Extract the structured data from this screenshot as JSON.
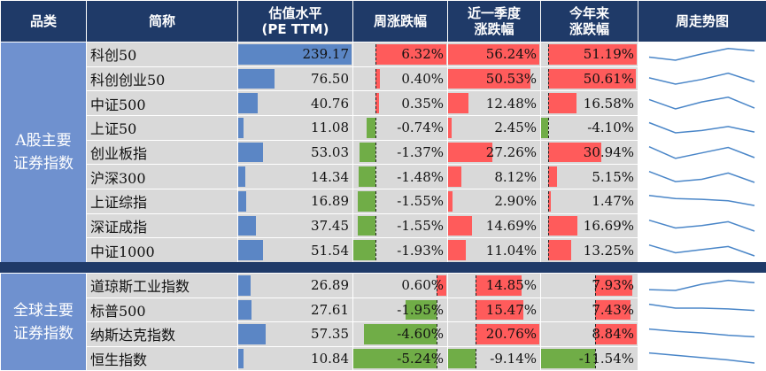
{
  "header": {
    "col_category": "品类",
    "col_name": "简称",
    "col_pe": [
      "估值水平",
      "(PE TTM)"
    ],
    "col_week": "周涨跌幅",
    "col_quarter": [
      "近一季度",
      "涨跌幅"
    ],
    "col_ytd": [
      "今年来",
      "涨跌幅"
    ],
    "col_trend": "周走势图"
  },
  "groups": [
    {
      "label": [
        "A股主要",
        "证券指数"
      ],
      "rows": [
        {
          "name": "科创50",
          "pe": 239.17,
          "pe_text": "239.17",
          "week": 6.32,
          "week_text": "6.32%",
          "quarter": 56.24,
          "quarter_text": "56.24%",
          "ytd": 51.19,
          "ytd_text": "51.19%",
          "trend": [
            0.35,
            0.15,
            0.55,
            0.9,
            0.75
          ]
        },
        {
          "name": "科创创业50",
          "pe": 76.5,
          "pe_text": "76.50",
          "week": 0.4,
          "week_text": "0.40%",
          "quarter": 50.53,
          "quarter_text": "50.53%",
          "ytd": 50.61,
          "ytd_text": "50.61%",
          "trend": [
            0.55,
            0.15,
            0.45,
            0.85,
            0.3
          ]
        },
        {
          "name": "中证500",
          "pe": 40.76,
          "pe_text": "40.76",
          "week": 0.35,
          "week_text": "0.35%",
          "quarter": 12.48,
          "quarter_text": "12.48%",
          "ytd": 16.58,
          "ytd_text": "16.58%",
          "trend": [
            0.75,
            0.15,
            0.6,
            0.9,
            0.2
          ]
        },
        {
          "name": "上证50",
          "pe": 11.08,
          "pe_text": "11.08",
          "week": -0.74,
          "week_text": "-0.74%",
          "quarter": 2.45,
          "quarter_text": "2.45%",
          "ytd": -4.1,
          "ytd_text": "-4.10%",
          "trend": [
            0.8,
            0.15,
            0.3,
            0.55,
            0.2
          ]
        },
        {
          "name": "创业板指",
          "pe": 53.03,
          "pe_text": "53.03",
          "week": -1.37,
          "week_text": "-1.37%",
          "quarter": 27.26,
          "quarter_text": "27.26%",
          "ytd": 30.94,
          "ytd_text": "30.94%",
          "trend": [
            0.85,
            0.1,
            0.45,
            0.8,
            0.15
          ]
        },
        {
          "name": "沪深300",
          "pe": 14.34,
          "pe_text": "14.34",
          "week": -1.48,
          "week_text": "-1.48%",
          "quarter": 8.12,
          "quarter_text": "8.12%",
          "ytd": 5.15,
          "ytd_text": "5.15%",
          "trend": [
            0.85,
            0.2,
            0.35,
            0.75,
            0.15
          ]
        },
        {
          "name": "上证综指",
          "pe": 16.89,
          "pe_text": "16.89",
          "week": -1.55,
          "week_text": "-1.55%",
          "quarter": 2.9,
          "quarter_text": "2.90%",
          "ytd": 1.47,
          "ytd_text": "1.47%",
          "trend": [
            0.85,
            0.65,
            0.6,
            0.5,
            0.2
          ]
        },
        {
          "name": "深证成指",
          "pe": 37.45,
          "pe_text": "37.45",
          "week": -1.55,
          "week_text": "-1.55%",
          "quarter": 14.69,
          "quarter_text": "14.69%",
          "ytd": 16.69,
          "ytd_text": "16.69%",
          "trend": [
            0.85,
            0.35,
            0.5,
            0.75,
            0.15
          ]
        },
        {
          "name": "中证1000",
          "pe": 51.54,
          "pe_text": "51.54",
          "week": -1.93,
          "week_text": "-1.93%",
          "quarter": 11.04,
          "quarter_text": "11.04%",
          "ytd": 13.25,
          "ytd_text": "13.25%",
          "trend": [
            0.85,
            0.35,
            0.55,
            0.75,
            0.15
          ]
        }
      ]
    },
    {
      "label": [
        "全球主要",
        "证券指数"
      ],
      "rows": [
        {
          "name": "道琼斯工业指数",
          "pe": 26.89,
          "pe_text": "26.89",
          "week": 0.6,
          "week_text": "0.60%",
          "quarter": 14.85,
          "quarter_text": "14.85%",
          "ytd": 7.93,
          "ytd_text": "7.93%",
          "trend": [
            0.25,
            0.2,
            0.6,
            0.85,
            0.7
          ]
        },
        {
          "name": "标普500",
          "pe": 27.61,
          "pe_text": "27.61",
          "week": -1.95,
          "week_text": "-1.95%",
          "quarter": 15.47,
          "quarter_text": "15.47%",
          "ytd": 7.43,
          "ytd_text": "7.43%",
          "trend": [
            0.85,
            0.6,
            0.6,
            0.55,
            0.45
          ]
        },
        {
          "name": "纳斯达克指数",
          "pe": 57.35,
          "pe_text": "57.35",
          "week": -4.6,
          "week_text": "-4.60%",
          "quarter": 20.76,
          "quarter_text": "20.76%",
          "ytd": 8.84,
          "ytd_text": "8.84%",
          "trend": [
            0.85,
            0.7,
            0.6,
            0.45,
            0.35
          ]
        },
        {
          "name": "恒生指数",
          "pe": 10.84,
          "pe_text": "10.84",
          "week": -5.24,
          "week_text": "-5.24%",
          "quarter": -9.14,
          "quarter_text": "-9.14%",
          "ytd": -11.54,
          "ytd_text": "-11.54%",
          "trend": [
            0.85,
            0.7,
            0.55,
            0.4,
            0.2
          ]
        }
      ]
    }
  ],
  "colors": {
    "header": "#1f3a68",
    "group": "#6f91cf",
    "blue_bar": "#5b86c5",
    "red_bar": "#ff5b5b",
    "green_bar": "#70ad47",
    "spark": "#4a86c8"
  }
}
